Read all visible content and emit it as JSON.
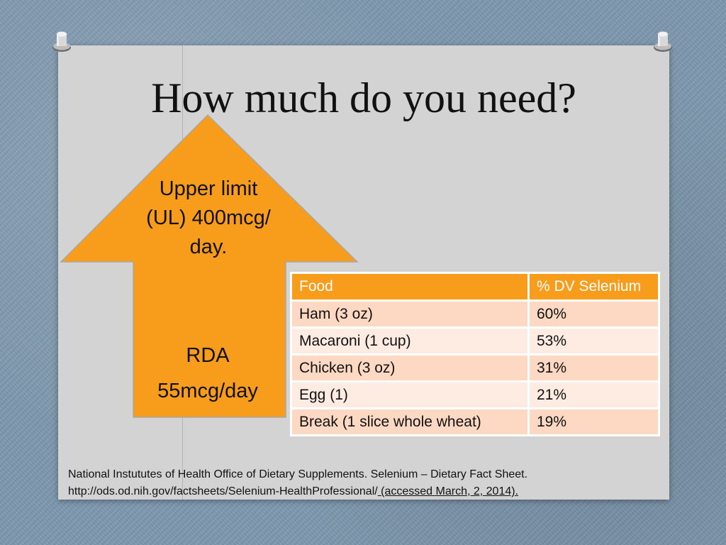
{
  "slide": {
    "title": "How much do you need?"
  },
  "arrow": {
    "color": "#f89c1c",
    "upper_lines": [
      "Upper limit",
      "(UL) 400mcg/",
      "day."
    ],
    "lower_lines": [
      "RDA",
      "55mcg/day"
    ]
  },
  "table": {
    "header_color": "#f89c1c",
    "headers": [
      "Food",
      "% DV Selenium"
    ],
    "rows": [
      [
        "Ham (3 oz)",
        "60%"
      ],
      [
        "Macaroni (1 cup)",
        "53%"
      ],
      [
        "Chicken (3 oz)",
        "31%"
      ],
      [
        "Egg (1)",
        "21%"
      ],
      [
        "Break (1 slice whole wheat)",
        "19%"
      ]
    ]
  },
  "citation": {
    "line1": "National Instututes of Health Office of Dietary Supplements. Selenium – Dietary Fact Sheet.",
    "line2_plain": "http://ods.od.nih.gov/factsheets/Selenium-HealthProfessional/",
    "line2_link": " (accessed March, 2, 2014)."
  }
}
